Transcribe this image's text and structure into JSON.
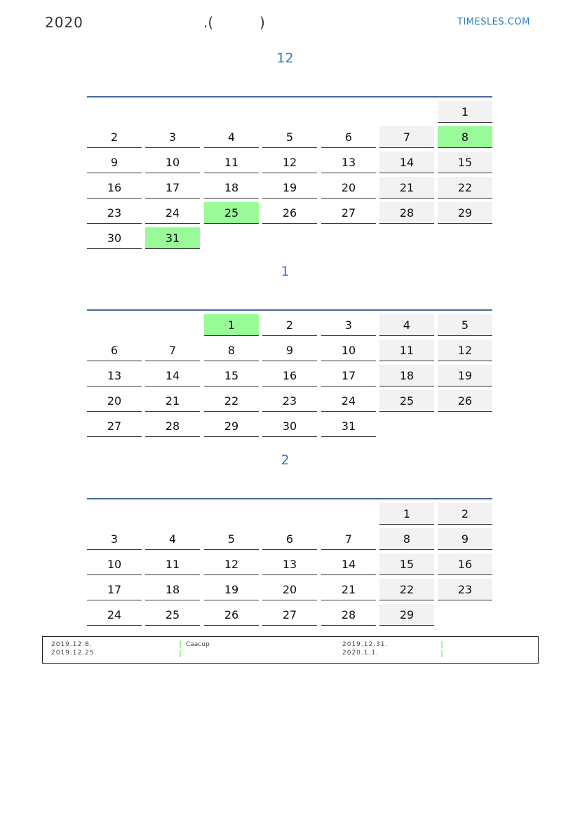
{
  "header": {
    "year": "2020",
    "paren_open": ".(",
    "paren_close": ")",
    "site": "TIMESLES.COM"
  },
  "colors": {
    "accent": "#2f7bbf",
    "rule": "#4a6a9c",
    "weekend": "#f2f2f2",
    "holiday": "#98fb98"
  },
  "months": [
    {
      "title": "12",
      "offset": 6,
      "days": 31,
      "highlight": [
        8,
        25,
        31
      ]
    },
    {
      "title": "1",
      "offset": 2,
      "days": 31,
      "highlight": [
        1
      ]
    },
    {
      "title": "2",
      "offset": 5,
      "days": 29,
      "highlight": []
    }
  ],
  "legend": {
    "col1": [
      "2019.12.8.",
      "2019.12.25."
    ],
    "col2": [
      "Caacup",
      ""
    ],
    "col3": [
      "2019.12.31.",
      "2020.1.1."
    ],
    "col4": [
      "",
      ""
    ]
  }
}
